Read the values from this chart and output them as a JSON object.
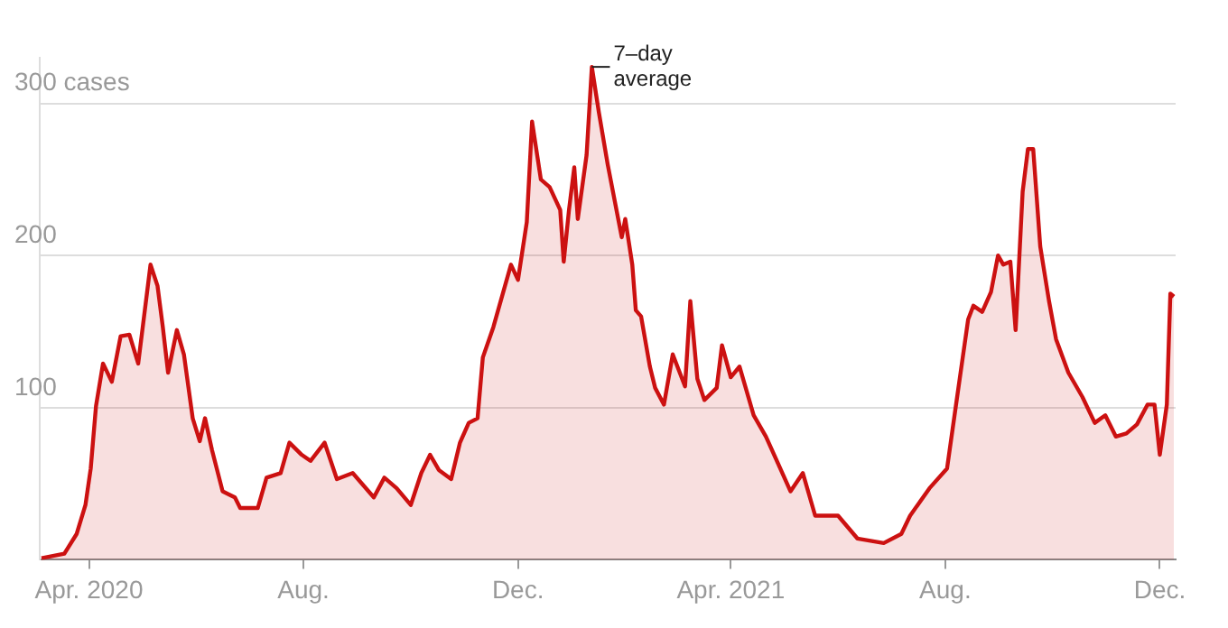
{
  "chart_data": {
    "type": "area",
    "x": [
      "2020-03-05",
      "2020-03-18",
      "2020-03-25",
      "2020-03-30",
      "2020-04-02",
      "2020-04-05",
      "2020-04-09",
      "2020-04-14",
      "2020-04-19",
      "2020-04-24",
      "2020-04-29",
      "2020-05-06",
      "2020-05-10",
      "2020-05-13",
      "2020-05-16",
      "2020-05-21",
      "2020-05-25",
      "2020-05-30",
      "2020-06-03",
      "2020-06-06",
      "2020-06-10",
      "2020-06-16",
      "2020-06-23",
      "2020-06-26",
      "2020-07-06",
      "2020-07-11",
      "2020-07-19",
      "2020-07-24",
      "2020-07-31",
      "2020-08-05",
      "2020-08-13",
      "2020-08-20",
      "2020-08-29",
      "2020-09-10",
      "2020-09-16",
      "2020-09-23",
      "2020-10-01",
      "2020-10-07",
      "2020-10-12",
      "2020-10-17",
      "2020-10-24",
      "2020-10-29",
      "2020-11-03",
      "2020-11-08",
      "2020-11-11",
      "2020-11-17",
      "2020-11-27",
      "2020-12-01",
      "2020-12-06",
      "2020-12-09",
      "2020-12-14",
      "2020-12-19",
      "2020-12-25",
      "2020-12-27",
      "2020-12-30",
      "2021-01-02",
      "2021-01-04",
      "2021-01-09",
      "2021-01-12",
      "2021-01-16",
      "2021-01-21",
      "2021-01-29",
      "2021-01-31",
      "2021-02-04",
      "2021-02-06",
      "2021-02-09",
      "2021-02-14",
      "2021-02-17",
      "2021-02-22",
      "2021-02-27",
      "2021-03-06",
      "2021-03-09",
      "2021-03-13",
      "2021-03-17",
      "2021-03-24",
      "2021-03-27",
      "2021-04-01",
      "2021-04-06",
      "2021-04-14",
      "2021-04-21",
      "2021-05-05",
      "2021-05-12",
      "2021-05-19",
      "2021-06-01",
      "2021-06-12",
      "2021-06-27",
      "2021-07-07",
      "2021-07-12",
      "2021-07-23",
      "2021-08-02",
      "2021-08-07",
      "2021-08-14",
      "2021-08-17",
      "2021-08-22",
      "2021-08-27",
      "2021-08-31",
      "2021-09-03",
      "2021-09-07",
      "2021-09-10",
      "2021-09-14",
      "2021-09-17",
      "2021-09-20",
      "2021-09-24",
      "2021-09-29",
      "2021-10-03",
      "2021-10-10",
      "2021-10-18",
      "2021-10-25",
      "2021-10-31",
      "2021-11-06",
      "2021-11-12",
      "2021-11-18",
      "2021-11-24",
      "2021-11-28",
      "2021-12-01",
      "2021-12-05",
      "2021-12-07",
      "2021-12-09"
    ],
    "series": [
      {
        "color": "#cc1111",
        "values": [
          1,
          4,
          17,
          36,
          60,
          101,
          129,
          117,
          147,
          148,
          129,
          194,
          180,
          153,
          123,
          151,
          135,
          93,
          78,
          93,
          72,
          45,
          41,
          34,
          34,
          54,
          57,
          77,
          69,
          65,
          77,
          53,
          57,
          41,
          54,
          47,
          36,
          57,
          69,
          59,
          53,
          77,
          90,
          93,
          133,
          153,
          194,
          184,
          222,
          288,
          250,
          245,
          230,
          196,
          230,
          258,
          224,
          266,
          324,
          294,
          260,
          212,
          224,
          194,
          164,
          160,
          127,
          113,
          102,
          135,
          114,
          170,
          119,
          105,
          113,
          141,
          120,
          127,
          95,
          81,
          45,
          57,
          29,
          29,
          14,
          11,
          17,
          29,
          47,
          60,
          101,
          158,
          167,
          163,
          176,
          200,
          194,
          196,
          151,
          242,
          270,
          270,
          206,
          170,
          145,
          123,
          107,
          90,
          95,
          81,
          83,
          89,
          102,
          102,
          69,
          102,
          175,
          173
        ]
      }
    ],
    "xlim": [
      "2020-03-04",
      "2021-12-10"
    ],
    "xticks": [
      {
        "value": "2020-04-01",
        "label": "Apr. 2020"
      },
      {
        "value": "2020-08-01",
        "label": "Aug."
      },
      {
        "value": "2020-12-01",
        "label": "Dec."
      },
      {
        "value": "2021-04-01",
        "label": "Apr. 2021"
      },
      {
        "value": "2021-08-01",
        "label": "Aug."
      },
      {
        "value": "2021-12-01",
        "label": "Dec."
      }
    ],
    "ylim": [
      0,
      330
    ],
    "yticks": [
      100,
      200,
      {
        "value": 300,
        "label": "300 cases"
      }
    ],
    "grid": "y",
    "annotations": [
      {
        "text": "7–day average",
        "x": "2021-01-12",
        "y": 324
      }
    ]
  }
}
